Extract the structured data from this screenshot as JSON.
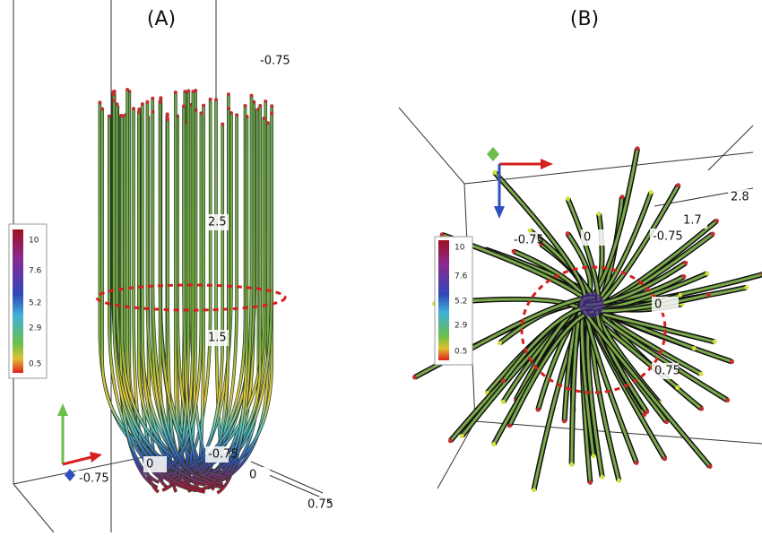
{
  "panels": [
    {
      "label": "(A)",
      "colorbar_ticks": [
        "10",
        "7.6",
        "5.2",
        "2.9",
        "0.5"
      ],
      "axis_labels": [
        "-0.75",
        "2.5",
        "1.5",
        "-0.75",
        "0",
        "-0.75",
        "0",
        "0.75"
      ]
    },
    {
      "label": "(B)",
      "colorbar_ticks": [
        "10",
        "7.6",
        "5.2",
        "2.9",
        "0.5"
      ],
      "axis_labels": [
        "2.8",
        "1.7",
        "-0.75",
        "0",
        "-0.75",
        "0",
        "0.75"
      ]
    }
  ]
}
